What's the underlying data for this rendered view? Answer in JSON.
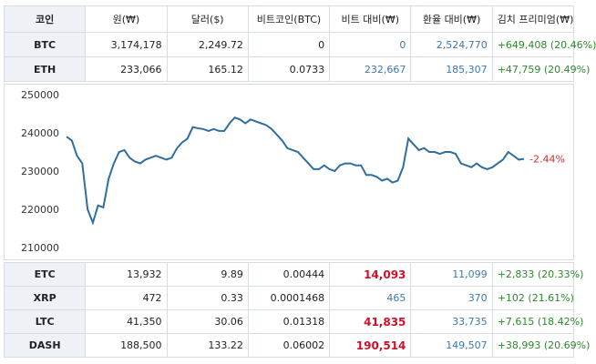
{
  "table": {
    "header": [
      "코인",
      "원(₩)",
      "달러($)",
      "비트코인(BTC)",
      "비트 대비(₩)",
      "환율 대비(₩)",
      "김치 프리미엄(₩)"
    ],
    "rows_top": [
      {
        "cells": [
          "BTC",
          "3,174,178",
          "2,249.72",
          "0",
          "0",
          "2,524,770",
          "+649,408 (20.46%)"
        ],
        "highlight": false
      },
      {
        "cells": [
          "ETH",
          "233,066",
          "165.12",
          "0.0733",
          "232,667",
          "185,307",
          "+47,759 (20.49%)"
        ],
        "highlight": false
      }
    ],
    "rows_bottom": [
      {
        "cells": [
          "ETC",
          "13,932",
          "9.89",
          "0.00444",
          "14,093",
          "11,099",
          "+2,833 (20.33%)"
        ],
        "highlight": true
      },
      {
        "cells": [
          "XRP",
          "472",
          "0.33",
          "0.0001468",
          "465",
          "370",
          "+102 (21.61%)"
        ],
        "highlight": false
      },
      {
        "cells": [
          "LTC",
          "41,350",
          "30.06",
          "0.01318",
          "41,835",
          "33,735",
          "+7,615 (18.42%)"
        ],
        "highlight": true
      },
      {
        "cells": [
          "DASH",
          "188,500",
          "133.22",
          "0.06002",
          "190,514",
          "149,507",
          "+38,993 (20.69%)"
        ],
        "highlight": true
      }
    ]
  },
  "chart_data": {
    "type": "line",
    "color": "#2f6e9f",
    "annotation": "-2.44%",
    "annotation_color": "#d03030",
    "ylim": [
      210000,
      250000
    ],
    "yticks": [
      210000,
      220000,
      230000,
      240000,
      250000
    ],
    "values": [
      239000,
      238000,
      234000,
      232000,
      220000,
      216500,
      221000,
      220500,
      228000,
      232000,
      235000,
      235500,
      233500,
      232500,
      232000,
      233000,
      233500,
      234000,
      233500,
      233000,
      233500,
      236000,
      237500,
      238500,
      241500,
      241200,
      241000,
      240500,
      241000,
      240500,
      240500,
      242500,
      244000,
      243500,
      242500,
      243500,
      243000,
      242500,
      242000,
      241000,
      239500,
      238000,
      236000,
      235500,
      235000,
      233500,
      232000,
      230500,
      230500,
      231500,
      230500,
      230000,
      231500,
      232000,
      232000,
      231500,
      231500,
      229000,
      229000,
      228500,
      227500,
      228000,
      227000,
      227500,
      231000,
      238500,
      237000,
      235500,
      236000,
      235000,
      235000,
      234500,
      235000,
      235000,
      234500,
      232000,
      231500,
      231000,
      232000,
      231000,
      230500,
      231000,
      232000,
      233000,
      235000,
      234000,
      233000,
      233200
    ]
  }
}
